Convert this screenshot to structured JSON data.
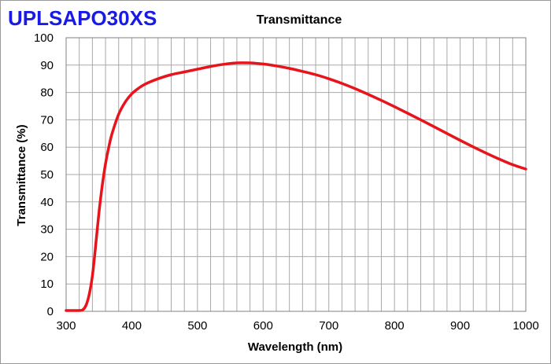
{
  "product_name": "UPLSAPO30XS",
  "chart_data": {
    "type": "line",
    "title": "Transmittance",
    "xlabel": "Wavelength (nm)",
    "ylabel": "Transmittance (%)",
    "xlim": [
      300,
      1000
    ],
    "ylim": [
      0,
      100
    ],
    "x_ticks": [
      300,
      400,
      500,
      600,
      700,
      800,
      900,
      1000
    ],
    "y_ticks": [
      0,
      10,
      20,
      30,
      40,
      50,
      60,
      70,
      80,
      90,
      100
    ],
    "x_minor_step": 20,
    "y_minor_step": 10,
    "grid": true,
    "series": [
      {
        "name": "Transmittance",
        "color": "#e8141c",
        "x": [
          300,
          310,
          320,
          325,
          330,
          335,
          340,
          345,
          350,
          355,
          360,
          365,
          370,
          380,
          390,
          400,
          410,
          420,
          440,
          460,
          480,
          500,
          520,
          540,
          560,
          580,
          600,
          620,
          640,
          660,
          680,
          700,
          720,
          740,
          760,
          780,
          800,
          820,
          840,
          860,
          880,
          900,
          920,
          940,
          960,
          980,
          1000
        ],
        "y": [
          0.3,
          0.3,
          0.3,
          0.5,
          2,
          6,
          13,
          24,
          36,
          46,
          54,
          60,
          65,
          72,
          76.5,
          79.5,
          81.5,
          83,
          85,
          86.5,
          87.5,
          88.5,
          89.5,
          90.3,
          90.8,
          90.8,
          90.4,
          89.7,
          88.8,
          87.7,
          86.5,
          85,
          83.3,
          81.4,
          79.3,
          77.1,
          74.8,
          72.4,
          70,
          67.5,
          65,
          62.5,
          60.1,
          57.8,
          55.6,
          53.6,
          52
        ]
      }
    ]
  }
}
